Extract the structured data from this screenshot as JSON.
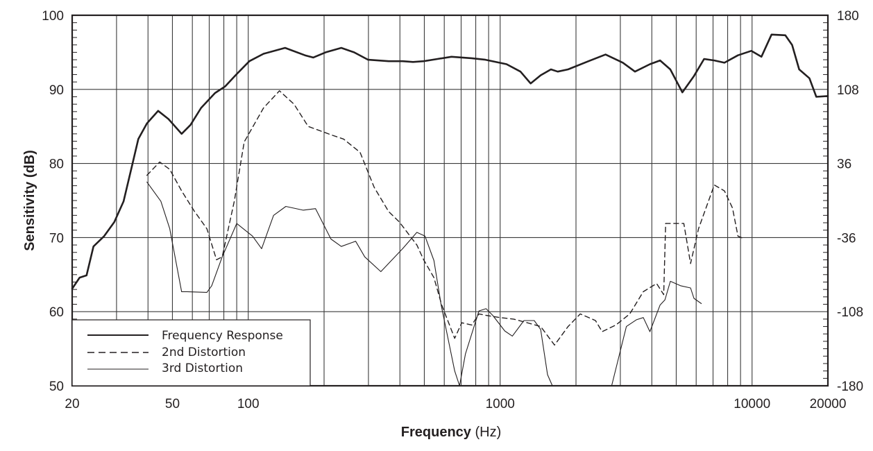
{
  "chart_data": {
    "type": "line",
    "title": "",
    "xlabel": "Frequency (Hz)",
    "ylabel": "Sensitivity (dB)",
    "x_scale": "log",
    "xlim": [
      20,
      20000
    ],
    "ylim": [
      50,
      100
    ],
    "y2lim": [
      -180,
      180
    ],
    "grid": true,
    "legend_position": "lower-left",
    "x_ticks": [
      {
        "value": 20,
        "label": "20"
      },
      {
        "value": 50,
        "label": "50"
      },
      {
        "value": 100,
        "label": "100"
      },
      {
        "value": 1000,
        "label": "1000"
      },
      {
        "value": 10000,
        "label": "10000"
      },
      {
        "value": 20000,
        "label": "20000"
      }
    ],
    "x_gridlines": [
      30,
      40,
      50,
      60,
      70,
      80,
      90,
      100,
      200,
      300,
      400,
      500,
      600,
      700,
      800,
      900,
      1000,
      2000,
      3000,
      4000,
      5000,
      6000,
      7000,
      8000,
      9000,
      10000
    ],
    "y_ticks": [
      {
        "value": 100,
        "label": "100"
      },
      {
        "value": 90,
        "label": "90"
      },
      {
        "value": 80,
        "label": "80"
      },
      {
        "value": 70,
        "label": "70"
      },
      {
        "value": 60,
        "label": "60"
      },
      {
        "value": 50,
        "label": "50"
      }
    ],
    "y2_ticks": [
      {
        "value": 100,
        "label": "180"
      },
      {
        "value": 90,
        "label": "108"
      },
      {
        "value": 80,
        "label": "36"
      },
      {
        "value": 70,
        "label": "-36"
      },
      {
        "value": 60,
        "label": "-108"
      },
      {
        "value": 50,
        "label": "-180"
      }
    ],
    "series": [
      {
        "name": "Frequency Response",
        "style": "solid-thick",
        "points": [
          [
            20,
            63.1
          ],
          [
            21.4,
            64.6
          ],
          [
            22.8,
            64.9
          ],
          [
            24.3,
            68.8
          ],
          [
            26.8,
            70.2
          ],
          [
            29.4,
            72.1
          ],
          [
            32,
            74.9
          ],
          [
            34.5,
            79.6
          ],
          [
            36.6,
            83.3
          ],
          [
            39.6,
            85.4
          ],
          [
            43.9,
            87.1
          ],
          [
            48.2,
            86
          ],
          [
            54.4,
            84
          ],
          [
            59,
            85.2
          ],
          [
            65,
            87.5
          ],
          [
            73.8,
            89.5
          ],
          [
            81,
            90.4
          ],
          [
            89,
            91.9
          ],
          [
            101,
            93.8
          ],
          [
            115,
            94.8
          ],
          [
            140,
            95.6
          ],
          [
            168,
            94.6
          ],
          [
            181,
            94.3
          ],
          [
            203,
            95
          ],
          [
            234,
            95.6
          ],
          [
            263,
            95
          ],
          [
            299,
            94
          ],
          [
            361,
            93.8
          ],
          [
            410,
            93.8
          ],
          [
            451,
            93.7
          ],
          [
            497,
            93.8
          ],
          [
            564,
            94.1
          ],
          [
            641,
            94.4
          ],
          [
            770,
            94.2
          ],
          [
            874,
            94
          ],
          [
            1060,
            93.4
          ],
          [
            1204,
            92.4
          ],
          [
            1322,
            90.8
          ],
          [
            1448,
            91.9
          ],
          [
            1591,
            92.7
          ],
          [
            1693,
            92.4
          ],
          [
            1860,
            92.7
          ],
          [
            2242,
            93.8
          ],
          [
            2621,
            94.7
          ],
          [
            3071,
            93.6
          ],
          [
            3430,
            92.4
          ],
          [
            3932,
            93.4
          ],
          [
            4315,
            93.9
          ],
          [
            4736,
            92.7
          ],
          [
            5290,
            89.6
          ],
          [
            5880,
            91.8
          ],
          [
            6452,
            94.1
          ],
          [
            7080,
            93.9
          ],
          [
            7770,
            93.6
          ],
          [
            8790,
            94.6
          ],
          [
            9930,
            95.2
          ],
          [
            10890,
            94.4
          ],
          [
            11950,
            97.4
          ],
          [
            13550,
            97.3
          ],
          [
            14420,
            96
          ],
          [
            15380,
            92.7
          ],
          [
            16890,
            91.5
          ],
          [
            17990,
            89
          ],
          [
            20000,
            89.1
          ]
        ]
      },
      {
        "name": "2nd Distortion",
        "style": "dashed",
        "points": [
          [
            39.6,
            78.4
          ],
          [
            44.5,
            80.2
          ],
          [
            48.8,
            79.2
          ],
          [
            54.4,
            76.3
          ],
          [
            61,
            73.6
          ],
          [
            68.5,
            71.2
          ],
          [
            74.8,
            67
          ],
          [
            78.8,
            67.4
          ],
          [
            88,
            74.9
          ],
          [
            96.4,
            82.9
          ],
          [
            115,
            87.5
          ],
          [
            133,
            89.8
          ],
          [
            152,
            88
          ],
          [
            173,
            85
          ],
          [
            216,
            83.8
          ],
          [
            239,
            83.3
          ],
          [
            278,
            81.5
          ],
          [
            316,
            76.8
          ],
          [
            361,
            73.5
          ],
          [
            398,
            72.1
          ],
          [
            467,
            69
          ],
          [
            497,
            67
          ],
          [
            546,
            64.6
          ],
          [
            586,
            60.9
          ],
          [
            660,
            56.4
          ],
          [
            704,
            58.5
          ],
          [
            772,
            58.2
          ],
          [
            824,
            59.7
          ],
          [
            879,
            59.5
          ],
          [
            997,
            59.2
          ],
          [
            1131,
            59
          ],
          [
            1282,
            58.5
          ],
          [
            1448,
            58
          ],
          [
            1644,
            55.5
          ],
          [
            1860,
            58
          ],
          [
            2080,
            59.7
          ],
          [
            2390,
            58.8
          ],
          [
            2540,
            57.3
          ],
          [
            2880,
            58.2
          ],
          [
            3270,
            59.7
          ],
          [
            3700,
            62.7
          ],
          [
            4180,
            63.8
          ],
          [
            4460,
            62.3
          ],
          [
            4540,
            71.9
          ],
          [
            5360,
            71.9
          ],
          [
            5700,
            66.5
          ],
          [
            6130,
            71.2
          ],
          [
            7080,
            77.1
          ],
          [
            7770,
            76.3
          ],
          [
            8360,
            74
          ],
          [
            8790,
            70.2
          ],
          [
            9350,
            69.8
          ]
        ]
      },
      {
        "name": "3rd Distortion",
        "style": "solid-thin",
        "points": [
          [
            39.6,
            77.5
          ],
          [
            45,
            74.9
          ],
          [
            48.8,
            71.2
          ],
          [
            54.4,
            62.7
          ],
          [
            57.2,
            62.7
          ],
          [
            68.5,
            62.6
          ],
          [
            71.6,
            63.5
          ],
          [
            78.8,
            67.4
          ],
          [
            90,
            71.9
          ],
          [
            104,
            70.2
          ],
          [
            113,
            68.5
          ],
          [
            126,
            73
          ],
          [
            141,
            74.2
          ],
          [
            165,
            73.7
          ],
          [
            185,
            73.9
          ],
          [
            213,
            69.8
          ],
          [
            234,
            68.8
          ],
          [
            267,
            69.5
          ],
          [
            290,
            67.4
          ],
          [
            336,
            65.4
          ],
          [
            410,
            68.5
          ],
          [
            467,
            70.7
          ],
          [
            503,
            70.2
          ],
          [
            546,
            66.9
          ],
          [
            583,
            60.9
          ],
          [
            660,
            52
          ],
          [
            690,
            50
          ],
          [
            728,
            54.3
          ],
          [
            824,
            60.1
          ],
          [
            879,
            60.4
          ],
          [
            934,
            59.5
          ],
          [
            1043,
            57.4
          ],
          [
            1118,
            56.7
          ],
          [
            1243,
            58.8
          ],
          [
            1365,
            58.8
          ],
          [
            1448,
            57.6
          ],
          [
            1542,
            51.5
          ],
          [
            1612,
            50
          ],
          [
            2771,
            50
          ],
          [
            3170,
            58
          ],
          [
            3474,
            58.9
          ],
          [
            3700,
            59.2
          ],
          [
            3930,
            57.3
          ],
          [
            4315,
            60.9
          ],
          [
            4510,
            61.6
          ],
          [
            4740,
            64.1
          ],
          [
            5200,
            63.5
          ],
          [
            5700,
            63.2
          ],
          [
            5880,
            61.8
          ],
          [
            6290,
            61.1
          ]
        ]
      }
    ]
  },
  "legend": {
    "items": [
      {
        "label": "Frequency Response"
      },
      {
        "label": "2nd Distortion"
      },
      {
        "label": "3rd Distortion"
      }
    ]
  },
  "axes": {
    "y_title": "Sensitivity (dB)",
    "x_title_main": "Frequency ",
    "x_title_unit": "(Hz)"
  },
  "colors": {
    "line": "#231f20",
    "grid": "#3a3a3a",
    "background": "#ffffff"
  }
}
